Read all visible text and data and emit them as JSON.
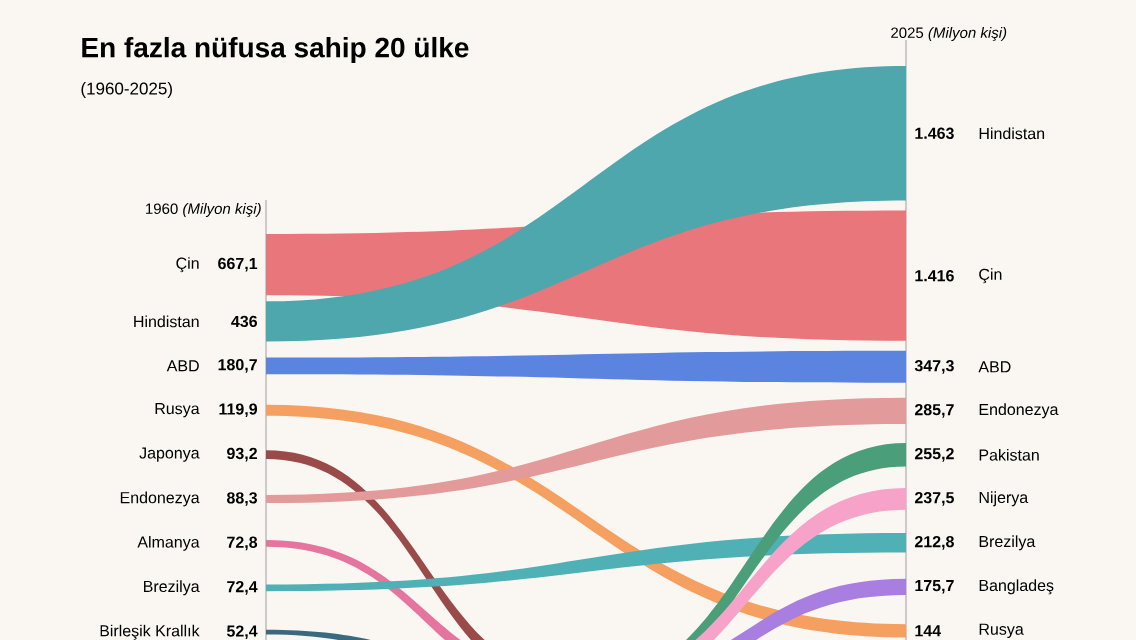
{
  "chart_data": {
    "type": "other",
    "title": "En fazla nüfusa sahip 20 ülke",
    "subtitle": "(1960-2025)",
    "categories": [
      "Çin",
      "Hindistan",
      "ABD",
      "Rusya",
      "Japonya",
      "Endonezya",
      "Almanya",
      "Brezilya",
      "Birleşik Krallık",
      "Pakistan",
      "Nijerya",
      "Bangladeş"
    ],
    "colors": [
      "#e8767a",
      "#4fa7ae",
      "#5b84e0",
      "#f5a060",
      "#9b4a4a",
      "#e39a9a",
      "#e5749f",
      "#4fb0b5",
      "#3a6a80",
      "#4a9e7a",
      "#f7a3c9",
      "#a87fe0"
    ],
    "series": [
      {
        "name": "1960 *(Milyon kişi)*",
        "values": [
          667.1,
          436,
          180.7,
          119.9,
          93.2,
          88.3,
          72.8,
          72.4,
          52.4,
          null,
          null,
          null
        ],
        "value_labels": [
          "667,1",
          "436",
          "180,7",
          "119,9",
          "93,2",
          "88,3",
          "72,8",
          "72,4",
          "52,4",
          null,
          null,
          null
        ]
      },
      {
        "name": "2025 *(Milyon kişi)*",
        "values": [
          1416,
          1463,
          347.3,
          144,
          null,
          285.7,
          null,
          212.8,
          null,
          255.2,
          237.5,
          175.7
        ],
        "value_labels": [
          "1.416",
          "1.463",
          "347,3",
          "144",
          null,
          "285,7",
          null,
          "212,8",
          null,
          "255,2",
          "237,5",
          "175,7"
        ]
      }
    ]
  }
}
